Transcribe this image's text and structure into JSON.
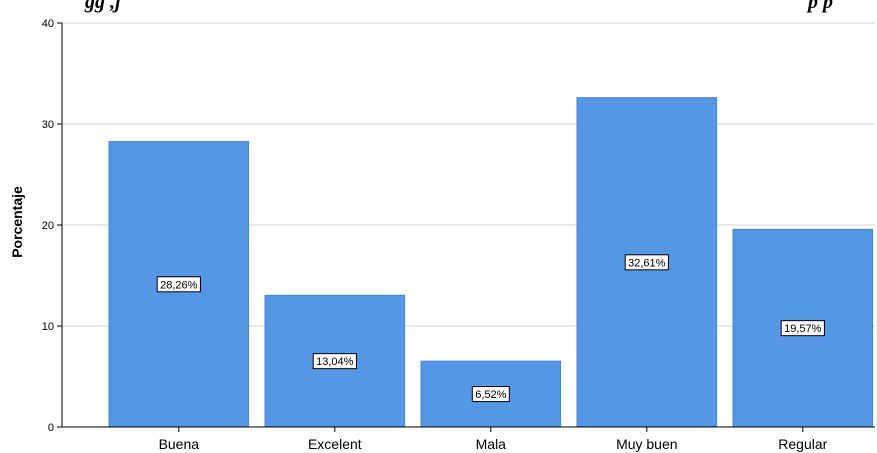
{
  "chart_data": {
    "type": "bar",
    "title_fragment_left": "gg ,j",
    "title_fragment_right": "p     p",
    "ylabel": "Porcentaje",
    "xlabel": "",
    "ylim": [
      0,
      40
    ],
    "yticks": [
      0,
      10,
      20,
      30,
      40
    ],
    "grid": true,
    "categories": [
      "Buena",
      "Excelent",
      "Mala",
      "Muy buen",
      "Regular"
    ],
    "values": [
      28.26,
      13.04,
      6.52,
      32.61,
      19.57
    ],
    "data_labels": [
      "28,26%",
      "13,04%",
      "6,52%",
      "32,61%",
      "19,57%"
    ],
    "bar_color": "#5596e6",
    "bar_edge_color": "#4a86d0"
  }
}
